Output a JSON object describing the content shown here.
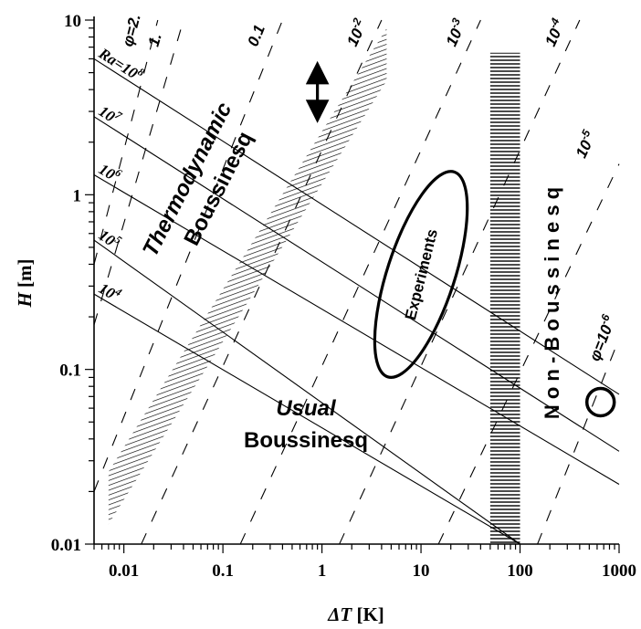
{
  "chart_data": {
    "type": "line",
    "x_scale": "log",
    "y_scale": "log",
    "xlim": [
      0.005,
      1000
    ],
    "ylim": [
      0.01,
      10
    ],
    "xlabel_symbol": "ΔT",
    "xlabel_unit": " [K]",
    "ylabel_symbol": "H",
    "ylabel_unit": " [m]",
    "x_ticks": [
      "0.01",
      "0.1",
      "1",
      "10",
      "100",
      "1000"
    ],
    "y_ticks": [
      "0.01",
      "0.1",
      "1",
      "10"
    ],
    "rayleigh_lines": [
      {
        "label_base": "Ra=10",
        "label_exp": "8",
        "x_start": 0.005,
        "y_start": 6.0,
        "x_end": 1000,
        "y_end": 0.072
      },
      {
        "label_base": "10",
        "label_exp": "7",
        "x_start": 0.005,
        "y_start": 2.8,
        "x_end": 1000,
        "y_end": 0.034
      },
      {
        "label_base": "10",
        "label_exp": "6",
        "x_start": 0.005,
        "y_start": 1.3,
        "x_end": 1000,
        "y_end": 0.022
      },
      {
        "label_base": "10",
        "label_exp": "5",
        "x_start": 0.005,
        "y_start": 0.55,
        "x_end": 100,
        "y_end": 0.01
      },
      {
        "label_base": "10",
        "label_exp": "4",
        "x_start": 0.005,
        "y_start": 0.27,
        "x_end": 100,
        "y_end": 0.01
      }
    ],
    "phi_lines": [
      {
        "label_base": "φ=2.",
        "label_exp": "",
        "x1": 0.005,
        "y1": 0.4,
        "x2": 0.022,
        "y2": 10
      },
      {
        "label_base": "1.",
        "label_exp": "",
        "x1": 0.005,
        "y1": 0.18,
        "x2": 0.04,
        "y2": 10
      },
      {
        "label_base": "0.1",
        "label_exp": "",
        "x1": 0.005,
        "y1": 0.02,
        "x2": 0.4,
        "y2": 10
      },
      {
        "label_base": "10",
        "label_exp": "-2",
        "x1": 0.015,
        "y1": 0.01,
        "x2": 4.0,
        "y2": 10
      },
      {
        "label_base": "10",
        "label_exp": "-3",
        "x1": 0.15,
        "y1": 0.01,
        "x2": 40,
        "y2": 10
      },
      {
        "label_base": "10",
        "label_exp": "-4",
        "x1": 1.5,
        "y1": 0.01,
        "x2": 400,
        "y2": 10
      },
      {
        "label_base": "10",
        "label_exp": "-5",
        "x1": 15,
        "y1": 0.01,
        "x2": 1000,
        "y2": 1.5
      },
      {
        "label_base": "φ=10",
        "label_exp": "-6",
        "x1": 150,
        "y1": 0.01,
        "x2": 1000,
        "y2": 0.15
      }
    ],
    "hatched_band": {
      "x_start": 0.007,
      "x_end": 4.5,
      "y_low_start": 0.013,
      "y_low_end": 4.5,
      "width_decades": 0.3
    },
    "horizontal_hatch": {
      "x_min": 50,
      "x_max": 100,
      "y_min": 0.01,
      "y_max": 6.5
    },
    "double_arrow": {
      "x": 0.9,
      "y_top": 5.0,
      "y_bottom": 3.0
    },
    "experiments_ellipse": {
      "cx": 10,
      "cy": 0.35,
      "label": "Experiments"
    },
    "circle_marker": {
      "x": 650,
      "y": 0.065
    },
    "regions": {
      "thermodynamic_line1": "Thermodynamic",
      "thermodynamic_line2": "Boussinesq",
      "usual_line1": "Usual",
      "usual_line2": "Boussinesq",
      "non_boussinesq": "N o n - B o u s s i n e s q"
    }
  }
}
